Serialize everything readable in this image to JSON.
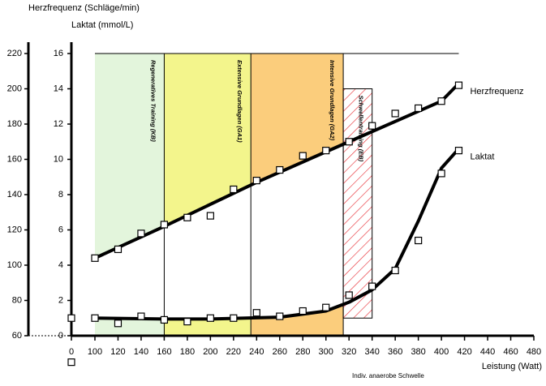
{
  "chart_data": {
    "type": "line",
    "y_axis_label": "Herzfrequenz (Schläge/min)",
    "y2_axis_label": "Laktat (mmol/L)",
    "x_axis_label": "Leistung (Watt)",
    "threshold_label": "Indiv. anaerobe Schwelle",
    "axis_break": true,
    "xlim": [
      0,
      480
    ],
    "xticks": [
      0,
      100,
      120,
      140,
      160,
      180,
      200,
      220,
      240,
      260,
      280,
      300,
      320,
      340,
      360,
      380,
      400,
      420,
      440,
      460,
      480
    ],
    "ylim": [
      60,
      220
    ],
    "yticks": [
      60,
      80,
      100,
      120,
      140,
      160,
      180,
      200,
      220
    ],
    "y2lim": [
      0,
      16
    ],
    "y2ticks": [
      0,
      2,
      4,
      6,
      8,
      10,
      12,
      14,
      16
    ],
    "zones": [
      {
        "label": "Regeneratives Training (KB)",
        "from": 100,
        "to": 160,
        "color": "#e3f5dc"
      },
      {
        "label": "Extensive Grundlagen (GA1)",
        "from": 160,
        "to": 235,
        "color": "#f3f58c"
      },
      {
        "label": "Intensive Grundlagen (GA2)",
        "from": 235,
        "to": 315,
        "color": "#fbcd7c"
      },
      {
        "label": "Schwellentraining (EB)",
        "from": 315,
        "to": 340,
        "low": 1,
        "high": 14,
        "color": "#e8333a",
        "hatch": true
      }
    ],
    "series": [
      {
        "name": "Herzfrequenz",
        "color": "#000000",
        "x": [
          0,
          100,
          120,
          140,
          160,
          180,
          200,
          220,
          240,
          260,
          280,
          300,
          320,
          340,
          360,
          380,
          400,
          415
        ],
        "values": [
          45,
          104,
          109,
          118,
          123,
          127,
          128,
          143,
          148,
          154,
          162,
          165,
          170,
          179,
          186,
          189,
          193,
          202
        ],
        "curve_x": [
          100,
          160,
          240,
          320,
          400,
          415
        ],
        "curve_values": [
          104,
          122,
          147,
          170,
          193,
          203
        ]
      },
      {
        "name": "Laktat",
        "color": "#000000",
        "axis": "y2",
        "x": [
          0,
          100,
          120,
          140,
          160,
          180,
          200,
          220,
          240,
          260,
          280,
          300,
          320,
          340,
          360,
          380,
          400,
          415
        ],
        "values": [
          1.0,
          1.0,
          0.7,
          1.1,
          0.9,
          0.8,
          1.0,
          1.0,
          1.3,
          1.1,
          1.4,
          1.6,
          2.3,
          2.8,
          3.7,
          5.4,
          9.2,
          10.5
        ],
        "curve_x": [
          100,
          160,
          200,
          260,
          300,
          320,
          340,
          360,
          380,
          400,
          415
        ],
        "curve_values": [
          1.0,
          0.95,
          0.95,
          1.05,
          1.4,
          1.9,
          2.6,
          3.8,
          6.5,
          9.5,
          10.6
        ]
      }
    ]
  }
}
